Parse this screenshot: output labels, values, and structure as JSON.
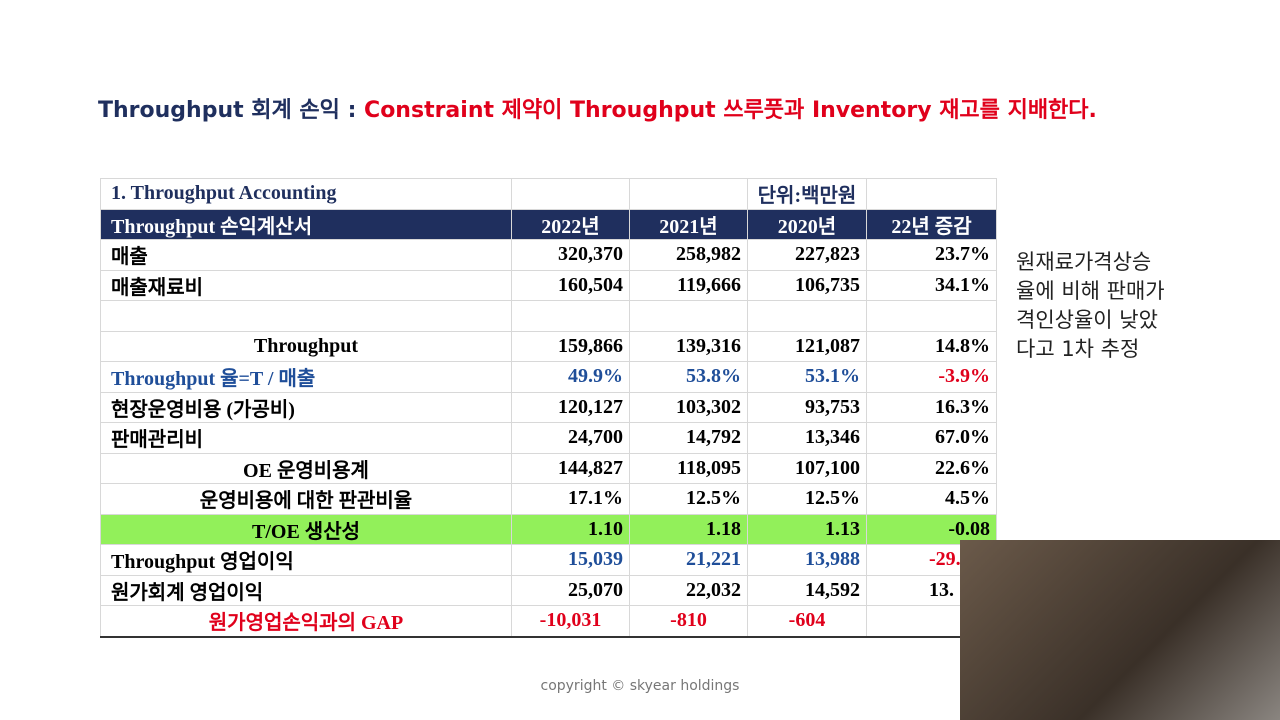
{
  "header": {
    "title_lead": "Throughput 회계 손익 :",
    "title_main": "Constraint 제약이 Throughput 쓰루풋과 Inventory 재고를 지배한다."
  },
  "table": {
    "caption": "1. Throughput Accounting",
    "unit": "단위:백만원",
    "columns": [
      "Throughput 손익계산서",
      "2022년",
      "2021년",
      "2020년",
      "22년 증감"
    ],
    "rows": [
      [
        "매출",
        "320,370",
        "258,982",
        "227,823",
        "23.7%"
      ],
      [
        "매출재료비",
        "160,504",
        "119,666",
        "106,735",
        "34.1%"
      ],
      [
        "Throughput",
        "159,866",
        "139,316",
        "121,087",
        "14.8%"
      ],
      [
        "Throughput 율=T / 매출",
        "49.9%",
        "53.8%",
        "53.1%",
        "-3.9%"
      ],
      [
        "현장운영비용 (가공비)",
        "120,127",
        "103,302",
        "93,753",
        "16.3%"
      ],
      [
        "판매관리비",
        "24,700",
        "14,792",
        "13,346",
        "67.0%"
      ],
      [
        "OE 운영비용계",
        "144,827",
        "118,095",
        "107,100",
        "22.6%"
      ],
      [
        "운영비용에 대한 판관비율",
        "17.1%",
        "12.5%",
        "12.5%",
        "4.5%"
      ],
      [
        "T/OE 생산성",
        "1.10",
        "1.18",
        "1.13",
        "-0.08"
      ],
      [
        "Throughput 영업이익",
        "15,039",
        "21,221",
        "13,988",
        "-29."
      ],
      [
        "원가회계 영업이익",
        "25,070",
        "22,032",
        "14,592",
        "13."
      ],
      [
        "원가영업손익과의 GAP",
        "-10,031",
        "-810",
        "-604"
      ]
    ]
  },
  "side_note": [
    "원재료가격상승",
    "율에 비해 판매가",
    "격인상율이 낮았",
    "다고 1차 추정"
  ],
  "footer": {
    "copyright": "copyright © skyear holdings"
  }
}
